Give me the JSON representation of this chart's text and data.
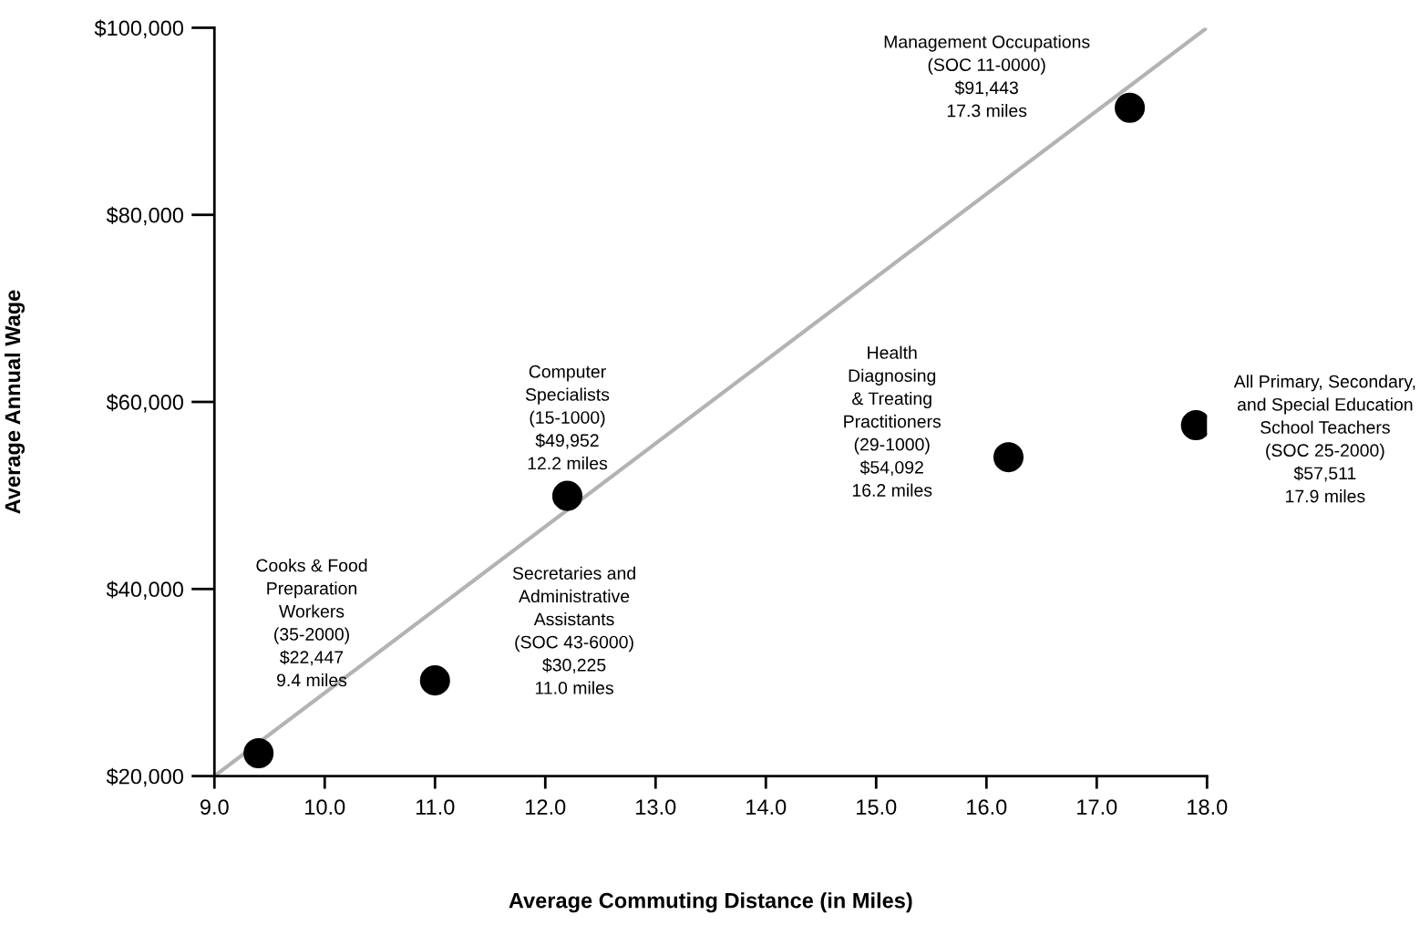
{
  "chart_data": {
    "type": "scatter",
    "xlabel": "Average Commuting Distance (in Miles)",
    "ylabel": "Average Annual Wage",
    "series": [
      {
        "type": "line",
        "color": "#b3b3b3",
        "x": [
          9.0,
          18.0
        ],
        "values": [
          20000,
          100000
        ]
      },
      {
        "marker": "circle",
        "color": "#000000",
        "x": [
          9.4,
          11.0,
          12.2,
          16.2,
          17.3,
          17.9
        ],
        "values": [
          22447,
          30225,
          49952,
          54092,
          91443,
          57511
        ]
      }
    ],
    "xlim": [
      9.0,
      18.0
    ],
    "ylim": [
      20000,
      100000
    ],
    "xticks": [
      {
        "value": 9,
        "label": "9.0"
      },
      {
        "value": 10,
        "label": "10.0"
      },
      {
        "value": 11,
        "label": "11.0"
      },
      {
        "value": 12,
        "label": "12.0"
      },
      {
        "value": 13,
        "label": "13.0"
      },
      {
        "value": 14,
        "label": "14.0"
      },
      {
        "value": 15,
        "label": "15.0"
      },
      {
        "value": 16,
        "label": "16.0"
      },
      {
        "value": 17,
        "label": "17.0"
      },
      {
        "value": 18,
        "label": "18.0"
      }
    ],
    "yticks": [
      {
        "value": 20000,
        "label": "$20,000"
      },
      {
        "value": 40000,
        "label": "$40,000"
      },
      {
        "value": 60000,
        "label": "$60,000"
      },
      {
        "value": 80000,
        "label": "$80,000"
      },
      {
        "value": 100000,
        "label": "$100,000"
      }
    ],
    "grid": false,
    "legend": false,
    "annotations": [
      "Cooks & Food\nPreparation\nWorkers\n(35-2000)\n$22,447\n9.4 miles",
      "Secretaries and\nAdministrative\nAssistants\n(SOC 43-6000)\n$30,225\n11.0 miles",
      "Computer\nSpecialists\n(15-1000)\n$49,952\n12.2 miles",
      "Health\nDiagnosing\n& Treating\nPractitioners\n(29-1000)\n$54,092\n16.2 miles",
      "Management Occupations\n(SOC 11-0000)\n$91,443\n17.3 miles",
      "All Primary, Secondary,\nand Special Education\nSchool Teachers\n(SOC 25-2000)\n$57,511\n17.9 miles"
    ]
  }
}
